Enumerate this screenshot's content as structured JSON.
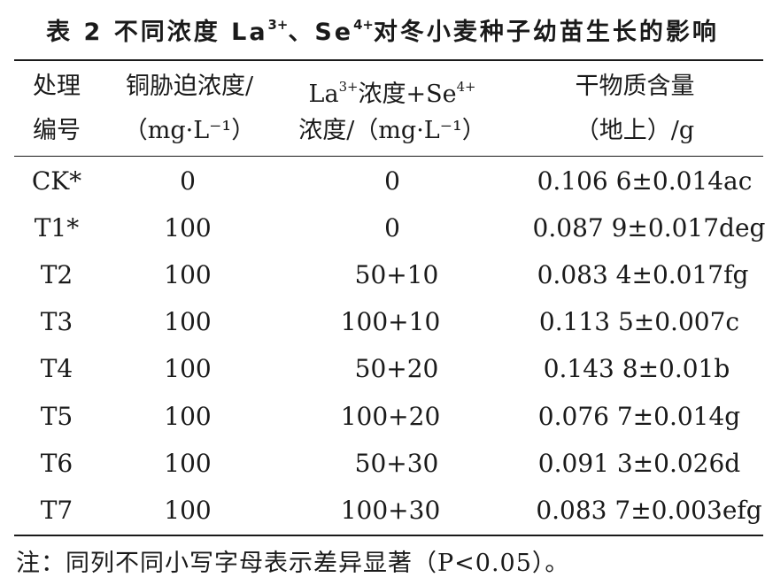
{
  "title": {
    "prefix": "表 2  不同浓度 La",
    "sup1": "3+",
    "middle": "、Se",
    "sup2": "4+",
    "suffix": "对冬小麦种子幼苗生长的影响"
  },
  "header": {
    "col1": [
      "处理",
      "编号"
    ],
    "col2": [
      "铜胁迫浓度/",
      "（mg·L⁻¹）"
    ],
    "col3_line1": {
      "a": "La",
      "sup_a": "3+",
      "b": "浓度+Se",
      "sup_b": "4+"
    },
    "col3_line2": "浓度/（mg·L⁻¹）",
    "col4": [
      "干物质含量",
      "（地上）/g"
    ]
  },
  "rows": [
    {
      "id": "CK*",
      "cu": "0",
      "la_se": "0",
      "dry": "0.106 6±0.014ac"
    },
    {
      "id": "T1*",
      "cu": "100",
      "la_se": "0",
      "dry": "0.087 9±0.017deg"
    },
    {
      "id": "T2",
      "cu": "100",
      "la_se": "50+10",
      "dry": "0.083 4±0.017fg"
    },
    {
      "id": "T3",
      "cu": "100",
      "la_se": "100+10",
      "dry": "0.113 5±0.007c"
    },
    {
      "id": "T4",
      "cu": "100",
      "la_se": "50+20",
      "dry": "0.143 8±0.01b"
    },
    {
      "id": "T5",
      "cu": "100",
      "la_se": "100+20",
      "dry": "0.076 7±0.014g"
    },
    {
      "id": "T6",
      "cu": "100",
      "la_se": "50+30",
      "dry": "0.091 3±0.026d"
    },
    {
      "id": "T7",
      "cu": "100",
      "la_se": "100+30",
      "dry": "0.083 7±0.003efg"
    }
  ],
  "note": "注：同列不同小写字母表示差异显著（P<0.05）。"
}
